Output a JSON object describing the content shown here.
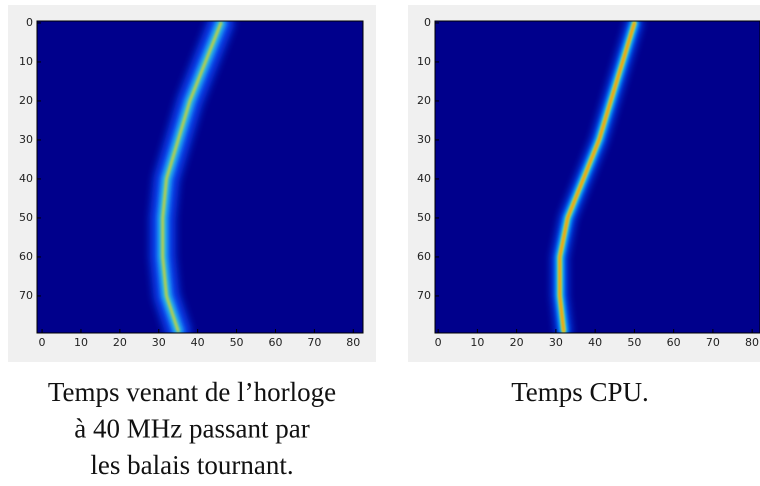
{
  "chart_data": [
    {
      "type": "ridge",
      "caption": [
        "Temps venant de l’horloge",
        "à 40 MHz passant par",
        "les balais tournant."
      ],
      "y": [
        0,
        10,
        20,
        30,
        40,
        50,
        60,
        70,
        79
      ],
      "x": [
        46,
        42,
        38,
        35,
        32,
        31,
        31,
        32,
        35
      ],
      "xlim": [
        -1.3,
        82.5
      ],
      "ylim": [
        79.5,
        -0.5
      ],
      "xticks": [
        0,
        10,
        20,
        30,
        40,
        50,
        60,
        70,
        80
      ],
      "yticks": [
        0,
        10,
        20,
        30,
        40,
        50,
        60,
        70
      ],
      "noisy": true
    },
    {
      "type": "ridge",
      "caption": [
        "Temps CPU."
      ],
      "y": [
        0,
        10,
        20,
        30,
        40,
        50,
        60,
        70,
        79
      ],
      "x": [
        50,
        47,
        44,
        41,
        37,
        33,
        31,
        31,
        32
      ],
      "xlim": [
        -0.8,
        82
      ],
      "ylim": [
        79.5,
        -0.5
      ],
      "xticks": [
        0,
        10,
        20,
        30,
        40,
        50,
        60,
        70,
        80
      ],
      "yticks": [
        0,
        10,
        20,
        30,
        40,
        50,
        60,
        70
      ],
      "noisy": false
    }
  ]
}
